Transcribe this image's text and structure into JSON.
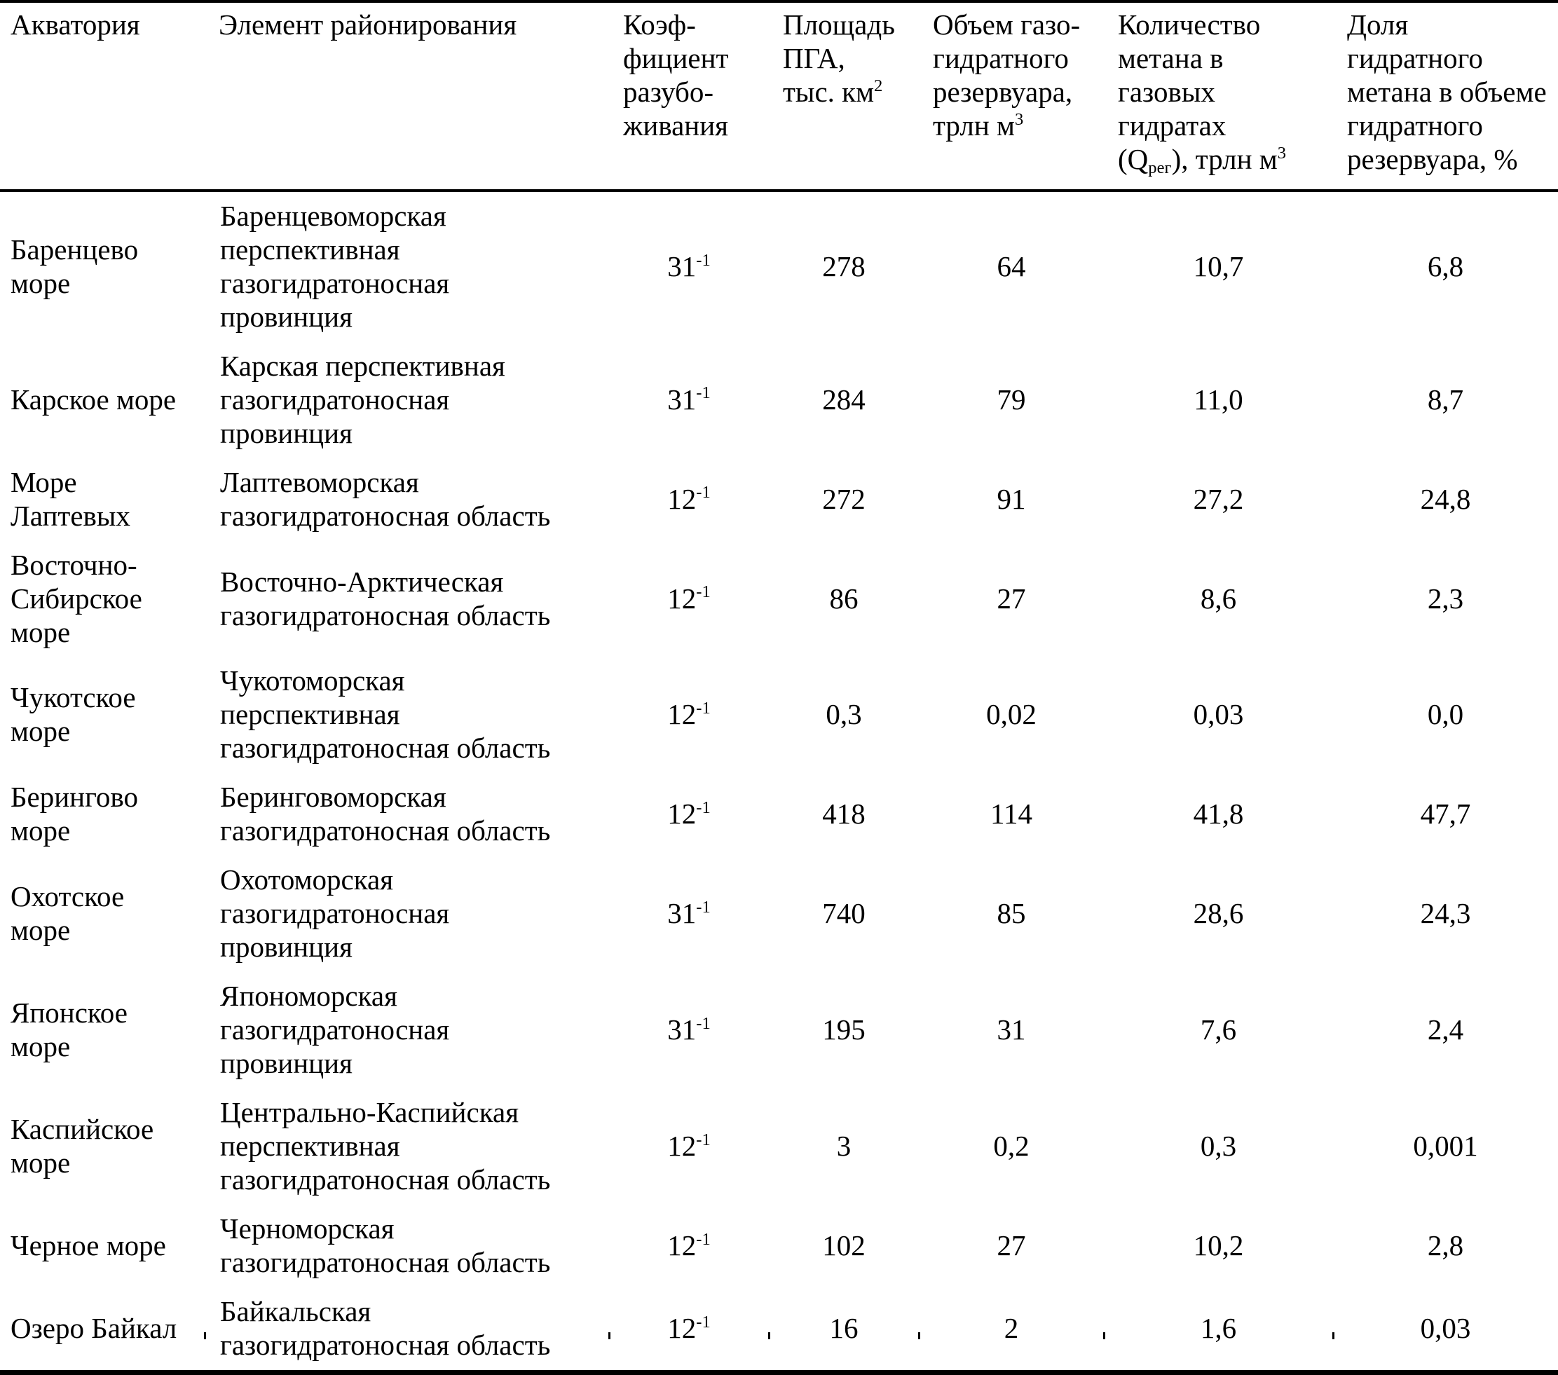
{
  "table": {
    "columns": [
      {
        "key": "aquatory",
        "align": "left",
        "label": "Акватория"
      },
      {
        "key": "element",
        "align": "left",
        "label": "Элемент районирования"
      },
      {
        "key": "coefficient",
        "align": "center",
        "label": "Коэф-\nфициент\nразубо-\nживания"
      },
      {
        "key": "area",
        "align": "center",
        "label": "Площадь\nПГА,\nтыс. км^{2}"
      },
      {
        "key": "volume",
        "align": "center",
        "label": "Объем газо-\nгидратного\nрезервуара,\nтрлн м^{3}"
      },
      {
        "key": "methane",
        "align": "center",
        "label": "Количество\nметана в\nгазовых\nгидратах\n(Q_{рег}), трлн м^{3}"
      },
      {
        "key": "share",
        "align": "center",
        "label": "Доля\nгидратного\nметана в объеме\nгидратного\nрезервуара, %"
      }
    ],
    "rows": [
      {
        "aquatory": "Баренцево\nморе",
        "element": "Баренцевоморская\nперспективная\nгазогидратоносная\nпровинция",
        "coefficient": "31^{-1}",
        "area": "278",
        "volume": "64",
        "methane": "10,7",
        "share": "6,8"
      },
      {
        "aquatory": "Карское море",
        "element": "Карская перспективная\nгазогидратоносная\nпровинция",
        "coefficient": "31^{-1}",
        "area": "284",
        "volume": "79",
        "methane": "11,0",
        "share": "8,7"
      },
      {
        "aquatory": "Море\nЛаптевых",
        "element": "Лаптевоморская\nгазогидратоносная область",
        "coefficient": "12^{-1}",
        "area": "272",
        "volume": "91",
        "methane": "27,2",
        "share": "24,8"
      },
      {
        "aquatory": "Восточно-\nСибирское\nморе",
        "element": "Восточно-Арктическая\nгазогидратоносная область",
        "coefficient": "12^{-1}",
        "area": "86",
        "volume": "27",
        "methane": "8,6",
        "share": "2,3"
      },
      {
        "aquatory": "Чукотское\nморе",
        "element": "Чукотоморская\nперспективная\nгазогидратоносная область",
        "coefficient": "12^{-1}",
        "area": "0,3",
        "volume": "0,02",
        "methane": "0,03",
        "share": "0,0"
      },
      {
        "aquatory": "Берингово\nморе",
        "element": "Беринговоморская\nгазогидратоносная область",
        "coefficient": "12^{-1}",
        "area": "418",
        "volume": "114",
        "methane": "41,8",
        "share": "47,7"
      },
      {
        "aquatory": "Охотское\nморе",
        "element": "Охотоморская\nгазогидратоносная\nпровинция",
        "coefficient": "31^{-1}",
        "area": "740",
        "volume": "85",
        "methane": "28,6",
        "share": "24,3"
      },
      {
        "aquatory": "Японское\nморе",
        "element": "Япономорская\nгазогидратоносная\nпровинция",
        "coefficient": "31^{-1}",
        "area": "195",
        "volume": "31",
        "methane": "7,6",
        "share": "2,4"
      },
      {
        "aquatory": "Каспийское\nморе",
        "element": "Центрально-Каспийская\nперспективная\nгазогидратоносная область",
        "coefficient": "12^{-1}",
        "area": "3",
        "volume": "0,2",
        "methane": "0,3",
        "share": "0,001"
      },
      {
        "aquatory": "Черное море",
        "element": "Черноморская\nгазогидратоносная область",
        "coefficient": "12^{-1}",
        "area": "102",
        "volume": "27",
        "methane": "10,2",
        "share": "2,8"
      },
      {
        "aquatory": "Озеро Байкал",
        "element": "Байкальская\nгазогидратоносная область",
        "coefficient": "12^{-1}",
        "area": "16",
        "volume": "2",
        "methane": "1,6",
        "share": "0,03"
      }
    ]
  }
}
